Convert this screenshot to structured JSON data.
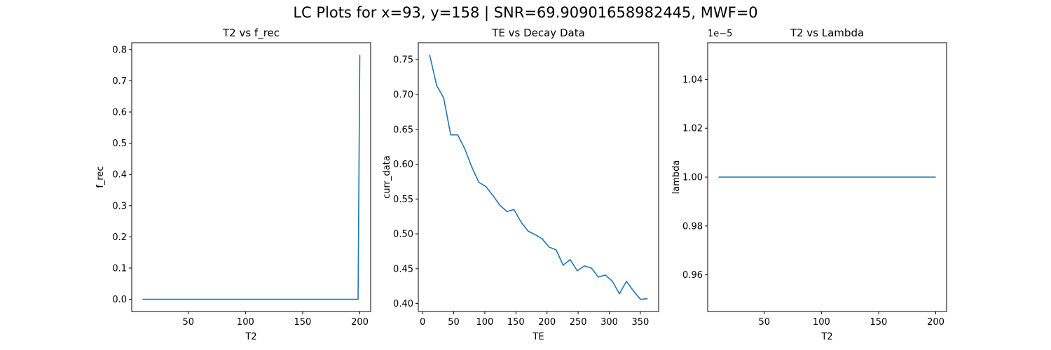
{
  "figure": {
    "suptitle": "LC Plots for x=93, y=158 | SNR=69.90901658982445, MWF=0"
  },
  "colors": {
    "line": "#1f77b4",
    "axis": "#000000"
  },
  "chart_data": [
    {
      "type": "line",
      "title": "T2 vs f_rec",
      "xlabel": "T2",
      "ylabel": "f_rec",
      "xlim": [
        0.5,
        209.5
      ],
      "ylim": [
        -0.039,
        0.822
      ],
      "xticks": [
        50,
        100,
        150,
        200
      ],
      "yticks": [
        0.0,
        0.1,
        0.2,
        0.3,
        0.4,
        0.5,
        0.6,
        0.7,
        0.8
      ],
      "ytick_labels": [
        "0.0",
        "0.1",
        "0.2",
        "0.3",
        "0.4",
        "0.5",
        "0.6",
        "0.7",
        "0.8"
      ],
      "series": [
        {
          "x": [
            10,
            198.5,
            200
          ],
          "y": [
            0.0,
            0.0,
            0.783
          ]
        }
      ]
    },
    {
      "type": "line",
      "title": "TE vs Decay Data",
      "xlabel": "TE",
      "ylabel": "curr_data",
      "xlim": [
        -6.9,
        379.4
      ],
      "ylim": [
        0.3886,
        0.7743
      ],
      "xticks": [
        0,
        50,
        100,
        150,
        200,
        250,
        300,
        350
      ],
      "yticks": [
        0.4,
        0.45,
        0.5,
        0.55,
        0.6,
        0.65,
        0.7,
        0.75
      ],
      "ytick_labels": [
        "0.40",
        "0.45",
        "0.50",
        "0.55",
        "0.60",
        "0.65",
        "0.70",
        "0.75"
      ],
      "series": [
        {
          "x": [
            11.3,
            22.6,
            33.9,
            45.2,
            56.5,
            67.8,
            79.1,
            90.4,
            101.7,
            113,
            124.3,
            135.6,
            146.9,
            158.2,
            169.5,
            180.8,
            192.1,
            203.4,
            214.7,
            226,
            237.3,
            248.6,
            259.9,
            271.2,
            282.5,
            293.8,
            305.1,
            316.4,
            327.7,
            339,
            350.3,
            361.6
          ],
          "y": [
            0.757,
            0.713,
            0.695,
            0.642,
            0.642,
            0.622,
            0.596,
            0.574,
            0.568,
            0.555,
            0.541,
            0.532,
            0.535,
            0.517,
            0.504,
            0.499,
            0.493,
            0.481,
            0.477,
            0.455,
            0.463,
            0.447,
            0.454,
            0.451,
            0.438,
            0.441,
            0.432,
            0.414,
            0.432,
            0.418,
            0.406,
            0.407
          ]
        }
      ]
    },
    {
      "type": "line",
      "title": "T2 vs Lambda",
      "xlabel": "T2",
      "ylabel": "lambda",
      "offset_label": "1e−5",
      "xlim": [
        0.5,
        209.5
      ],
      "ylim": [
        0.945,
        1.055
      ],
      "xticks": [
        50,
        100,
        150,
        200
      ],
      "yticks": [
        0.96,
        0.98,
        1.0,
        1.02,
        1.04
      ],
      "ytick_labels": [
        "0.96",
        "0.98",
        "1.00",
        "1.02",
        "1.04"
      ],
      "series": [
        {
          "x": [
            10,
            200
          ],
          "y": [
            1.0,
            1.0
          ]
        }
      ]
    }
  ]
}
